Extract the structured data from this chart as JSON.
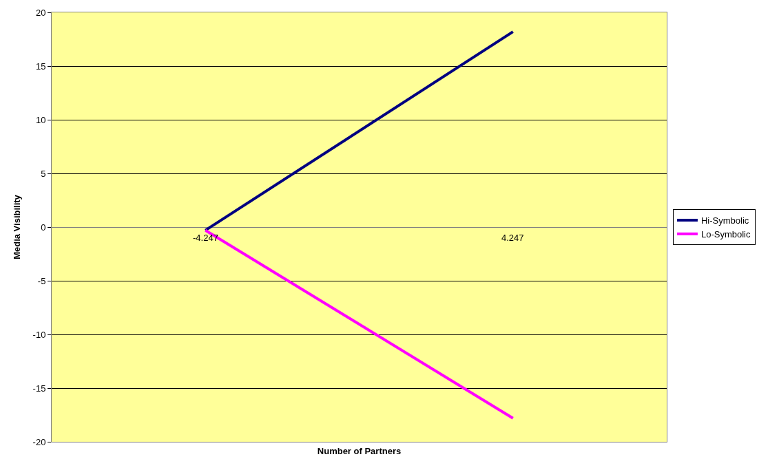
{
  "chart_data": {
    "type": "line",
    "xlabel": "Number of Partners",
    "ylabel": "Media Visibility",
    "categories": [
      "-4.247",
      "4.247"
    ],
    "series": [
      {
        "name": "Hi-Symbolic",
        "color": "#000080",
        "values": [
          -0.3,
          18.2
        ]
      },
      {
        "name": "Lo-Symbolic",
        "color": "#ff00ff",
        "values": [
          -0.3,
          -17.8
        ]
      }
    ],
    "ylim": [
      -20,
      20
    ],
    "yticks": [
      -20,
      -15,
      -10,
      -5,
      0,
      5,
      10,
      15,
      20
    ],
    "grid": "y",
    "legend": "right",
    "marker": "none",
    "line_style": "solid"
  }
}
